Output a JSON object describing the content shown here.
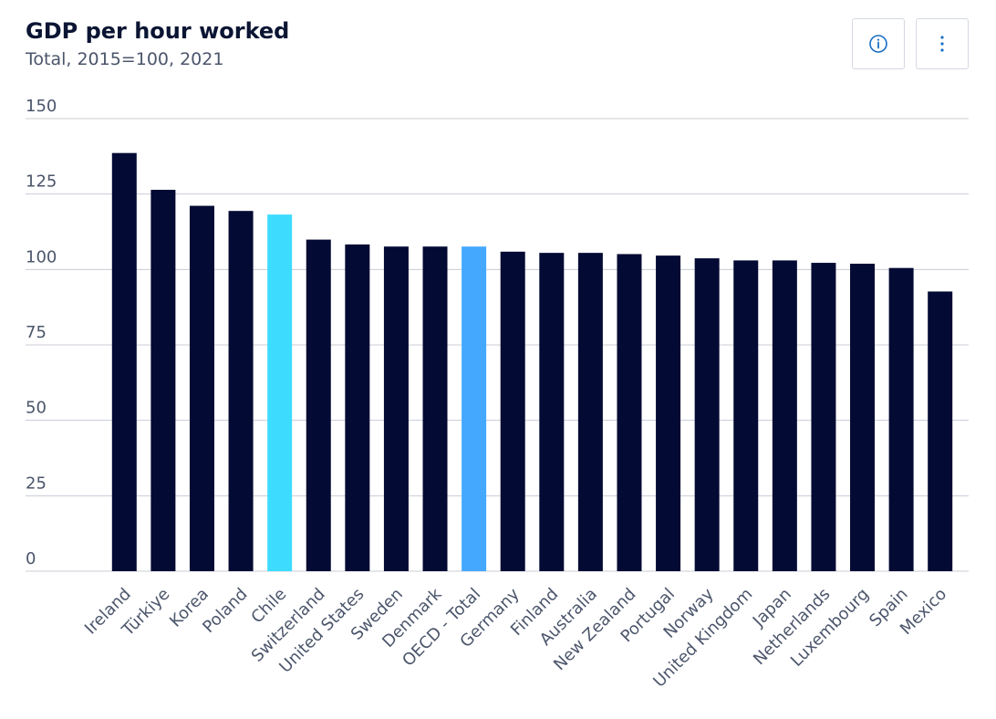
{
  "header": {
    "title": "GDP per hour worked",
    "subtitle": "Total, 2015=100, 2021"
  },
  "toolbar": {
    "info_icon": "info-circle-icon",
    "menu_icon": "vertical-ellipsis-icon"
  },
  "colors": {
    "bar_default": "#030a33",
    "bar_highlight_chile": "#3ddcff",
    "bar_highlight_oecd": "#45a8ff",
    "grid": "#c8ccd6",
    "icon_accent": "#1a6fc4"
  },
  "chart_data": {
    "type": "bar",
    "title": "GDP per hour worked",
    "subtitle": "Total, 2015=100, 2021",
    "xlabel": "",
    "ylabel": "",
    "ylim": [
      0,
      150
    ],
    "yticks": [
      0,
      25,
      50,
      75,
      100,
      125,
      150
    ],
    "grid": true,
    "categories": [
      "Ireland",
      "Türkiye",
      "Korea",
      "Poland",
      "Chile",
      "Switzerland",
      "United States",
      "Sweden",
      "Denmark",
      "OECD - Total",
      "Germany",
      "Finland",
      "Australia",
      "New Zealand",
      "Portugal",
      "Norway",
      "United Kingdom",
      "Japan",
      "Netherlands",
      "Luxembourg",
      "Spain",
      "Mexico"
    ],
    "values": [
      138.6,
      126.4,
      121.1,
      119.4,
      118.2,
      109.9,
      108.3,
      107.6,
      107.6,
      107.6,
      105.9,
      105.5,
      105.5,
      105.1,
      104.6,
      103.7,
      103.0,
      103.0,
      102.2,
      101.9,
      100.5,
      92.7
    ],
    "highlight": {
      "Chile": "#3ddcff",
      "OECD - Total": "#45a8ff"
    }
  }
}
